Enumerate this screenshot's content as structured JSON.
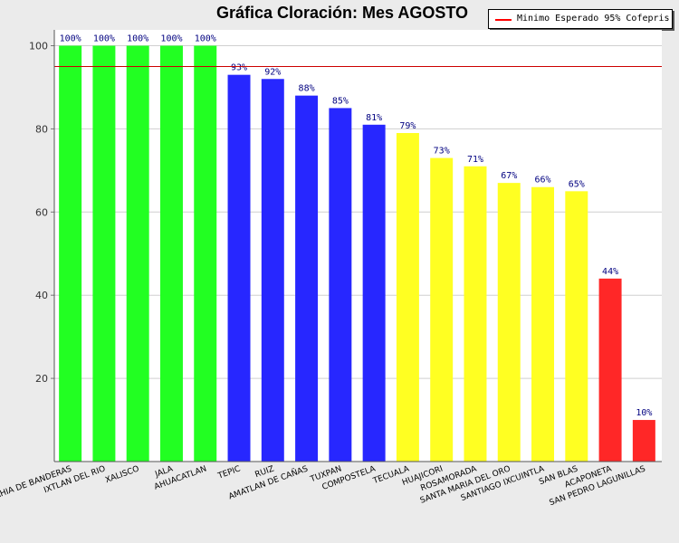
{
  "chart_data": {
    "type": "bar",
    "title": "Gráfica Cloración: Mes AGOSTO",
    "xlabel": "",
    "ylabel": "",
    "ylim": [
      0,
      100
    ],
    "yticks": [
      "20",
      "40",
      "60",
      "80",
      "100"
    ],
    "grid": true,
    "legend_placement": "top-right",
    "categories": [
      "BAHIA DE BANDERAS",
      "IXTLAN DEL RIO",
      "XALISCO",
      "JALA",
      "AHUACATLAN",
      "TEPIC",
      "RUIZ",
      "AMATLAN DE CAÑAS",
      "TUXPAN",
      "COMPOSTELA",
      "TECUALA",
      "HUAJICORI",
      "ROSAMORADA",
      "SANTA MARIA DEL ORO",
      "SANTIAGO IXCUINTLA",
      "SAN BLAS",
      "ACAPONETA",
      "SAN PEDRO LAGUNILLAS"
    ],
    "values": [
      100,
      100,
      100,
      100,
      100,
      93,
      92,
      88,
      85,
      81,
      79,
      73,
      71,
      67,
      66,
      65,
      44,
      10
    ],
    "value_labels": [
      "100%",
      "100%",
      "100%",
      "100%",
      "100%",
      "93%",
      "92%",
      "88%",
      "85%",
      "81%",
      "79%",
      "73%",
      "71%",
      "67%",
      "66%",
      "65%",
      "44%",
      "10%"
    ],
    "bar_colors": [
      "#22ff22",
      "#22ff22",
      "#22ff22",
      "#22ff22",
      "#22ff22",
      "#2727ff",
      "#2727ff",
      "#2727ff",
      "#2727ff",
      "#2727ff",
      "#ffff22",
      "#ffff22",
      "#ffff22",
      "#ffff22",
      "#ffff22",
      "#ffff22",
      "#ff2727",
      "#ff2727"
    ],
    "reference_line": {
      "name": "Minimo Esperado 95% Cofepris",
      "value": 95,
      "color": "#cc0000"
    },
    "legend": [
      {
        "label": "Minimo Esperado 95% Cofepris",
        "color": "#ff0000"
      }
    ],
    "value_label_color": "#000080"
  }
}
